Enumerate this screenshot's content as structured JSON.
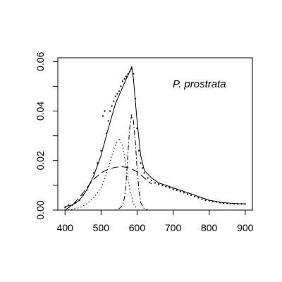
{
  "chart_data": {
    "type": "scatter",
    "title": "",
    "xlabel": "",
    "ylabel": "",
    "annotation": "P. prostrata",
    "xlim": [
      380,
      920
    ],
    "ylim": [
      0,
      0.0615
    ],
    "x_ticks": [
      400,
      500,
      600,
      700,
      800,
      900
    ],
    "y_ticks": [
      0.0,
      0.02,
      0.04,
      0.06
    ],
    "y_tick_labels": [
      "0.00",
      "0.02",
      "0.04",
      "0.06"
    ],
    "y_minor_ticks": [
      0.01,
      0.03,
      0.05
    ],
    "grid": false,
    "legend": "none",
    "observed_points": {
      "x": [
        400,
        410,
        420,
        430,
        440,
        450,
        460,
        470,
        480,
        490,
        500,
        505,
        510,
        515,
        520,
        525,
        530,
        535,
        540,
        545,
        550,
        555,
        560,
        565,
        570,
        575,
        580,
        585,
        590,
        595,
        600,
        605,
        610,
        615,
        620,
        630,
        640,
        650,
        660,
        670,
        680,
        690,
        700,
        710,
        720,
        730,
        740,
        750,
        760,
        770,
        780,
        790,
        800,
        810,
        820,
        830,
        840,
        850,
        860,
        870,
        880,
        890,
        900
      ],
      "y": [
        0.001,
        0.002,
        0.002,
        0.003,
        0.004,
        0.006,
        0.008,
        0.011,
        0.015,
        0.019,
        0.024,
        0.038,
        0.04,
        0.031,
        0.036,
        0.04,
        0.042,
        0.044,
        0.046,
        0.047,
        0.048,
        0.05,
        0.052,
        0.053,
        0.054,
        0.055,
        0.056,
        0.057,
        0.055,
        0.045,
        0.033,
        0.024,
        0.019,
        0.017,
        0.015,
        0.013,
        0.012,
        0.011,
        0.0105,
        0.01,
        0.0095,
        0.009,
        0.0085,
        0.008,
        0.0075,
        0.007,
        0.0065,
        0.006,
        0.0055,
        0.005,
        0.0045,
        0.004,
        0.0038,
        0.0035,
        0.0033,
        0.003,
        0.0028,
        0.0027,
        0.0026,
        0.0025,
        0.0025,
        0.0025,
        0.0025
      ]
    },
    "series": [
      {
        "style": "solid",
        "x": [
          400,
          420,
          440,
          460,
          480,
          500,
          520,
          540,
          555,
          570,
          580,
          585,
          590,
          600,
          610,
          620,
          640,
          660,
          680,
          700,
          720,
          740,
          760,
          780,
          800,
          820,
          840,
          860,
          880,
          900
        ],
        "y": [
          0.0015,
          0.002,
          0.004,
          0.008,
          0.014,
          0.022,
          0.033,
          0.043,
          0.048,
          0.053,
          0.056,
          0.058,
          0.053,
          0.036,
          0.022,
          0.016,
          0.013,
          0.011,
          0.01,
          0.009,
          0.008,
          0.007,
          0.006,
          0.005,
          0.004,
          0.0035,
          0.003,
          0.0028,
          0.0026,
          0.0025
        ]
      },
      {
        "style": "longdash",
        "x": [
          400,
          420,
          440,
          460,
          480,
          500,
          520,
          540,
          560,
          580,
          600,
          620,
          640
        ],
        "y": [
          0.0,
          0.002,
          0.005,
          0.009,
          0.0125,
          0.015,
          0.0165,
          0.0173,
          0.0175,
          0.017,
          0.0155,
          0.013,
          0.0105
        ]
      },
      {
        "style": "dotted",
        "x": [
          400,
          420,
          440,
          460,
          480,
          500,
          510,
          520,
          530,
          540,
          550,
          560,
          570,
          580,
          590,
          600
        ],
        "y": [
          0.0,
          0.0003,
          0.001,
          0.0025,
          0.005,
          0.009,
          0.0125,
          0.017,
          0.022,
          0.0265,
          0.029,
          0.026,
          0.017,
          0.008,
          0.0025,
          0.0004
        ]
      },
      {
        "style": "dotdash",
        "x": [
          540,
          550,
          560,
          565,
          570,
          575,
          580,
          585,
          590,
          595,
          600,
          605,
          610,
          620,
          630
        ],
        "y": [
          0.0,
          0.0005,
          0.002,
          0.005,
          0.012,
          0.024,
          0.034,
          0.0385,
          0.036,
          0.028,
          0.017,
          0.008,
          0.003,
          0.0005,
          0.0
        ]
      }
    ]
  }
}
